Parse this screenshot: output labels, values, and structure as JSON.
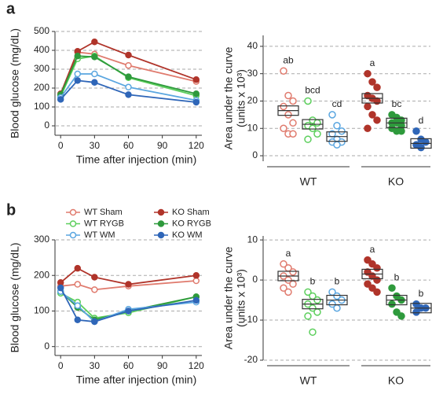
{
  "chart_data": [
    {
      "type": "line",
      "panel": "a",
      "xlabel": "Time after injection (min)",
      "ylabel": "Blood glucose (mg/dL)",
      "x": [
        0,
        15,
        30,
        60,
        120
      ],
      "xlim": [
        -5,
        125
      ],
      "xticks": [
        0,
        30,
        60,
        90,
        120
      ],
      "ylim": [
        -50,
        500
      ],
      "yticks": [
        0,
        100,
        200,
        300,
        400,
        500
      ],
      "grid": true,
      "series": [
        {
          "name": "WT Sham",
          "color": "#e07b6e",
          "marker": "open",
          "values": [
            165,
            390,
            380,
            320,
            235
          ]
        },
        {
          "name": "KO Sham",
          "color": "#b0342a",
          "marker": "filled",
          "values": [
            170,
            395,
            445,
            375,
            245
          ]
        },
        {
          "name": "WT RYGB",
          "color": "#5ccf5c",
          "marker": "open",
          "values": [
            155,
            355,
            370,
            255,
            160
          ]
        },
        {
          "name": "KO RYGB",
          "color": "#2e9a3c",
          "marker": "filled",
          "values": [
            165,
            370,
            365,
            260,
            170
          ]
        },
        {
          "name": "WT WM",
          "color": "#5aa6e0",
          "marker": "open",
          "values": [
            150,
            275,
            275,
            205,
            135
          ]
        },
        {
          "name": "KO WM",
          "color": "#2f66b8",
          "marker": "filled",
          "values": [
            140,
            240,
            230,
            165,
            125
          ]
        }
      ]
    },
    {
      "type": "dot",
      "ylabel": [
        "Area under the curve",
        "(units x 10³)"
      ],
      "categories": [
        null,
        null,
        null,
        null,
        null,
        null
      ],
      "groups": [
        "WT",
        "KO"
      ],
      "colors": [
        "#e07b6e",
        "#5ccf5c",
        "#5aa6e0",
        "#b0342a",
        "#2e9a3c",
        "#2f66b8"
      ],
      "markers": [
        "open",
        "open",
        "open",
        "filled",
        "filled",
        "filled"
      ],
      "ylim": [
        -2,
        44
      ],
      "yticks": [
        0,
        10,
        20,
        30,
        40
      ],
      "grid": true,
      "means": [
        16.5,
        11.5,
        7,
        21,
        12,
        4.5
      ],
      "annotations": [
        "ab",
        "bcd",
        "cd",
        "a",
        "bc",
        "d"
      ],
      "points": [
        [
          31,
          22,
          20,
          18,
          15,
          12,
          10,
          8,
          8
        ],
        [
          20,
          13,
          12,
          11,
          10,
          8,
          6
        ],
        [
          15,
          11,
          9,
          8,
          6,
          5,
          5,
          4
        ],
        [
          30,
          27,
          25,
          22,
          21,
          20,
          18,
          15,
          13,
          10
        ],
        [
          15,
          14,
          13,
          12,
          12,
          11,
          10,
          9,
          9
        ],
        [
          9,
          6,
          5,
          4,
          3
        ]
      ]
    },
    {
      "type": "line",
      "panel": "b",
      "xlabel": "Time after injection (min)",
      "ylabel": "Blood glucose (mg/dL)",
      "legend": true,
      "x": [
        0,
        15,
        30,
        60,
        120
      ],
      "xlim": [
        -5,
        125
      ],
      "xticks": [
        0,
        30,
        60,
        90,
        120
      ],
      "ylim": [
        -25,
        300
      ],
      "yticks": [
        0,
        100,
        200,
        300
      ],
      "grid": true,
      "series": [
        {
          "name": "WT Sham",
          "color": "#e07b6e",
          "marker": "open",
          "values": [
            170,
            175,
            160,
            170,
            185
          ]
        },
        {
          "name": "KO Sham",
          "color": "#b0342a",
          "marker": "filled",
          "values": [
            180,
            220,
            195,
            175,
            200
          ]
        },
        {
          "name": "WT RYGB",
          "color": "#5ccf5c",
          "marker": "open",
          "values": [
            150,
            125,
            80,
            95,
            140
          ]
        },
        {
          "name": "KO RYGB",
          "color": "#2e9a3c",
          "marker": "filled",
          "values": [
            155,
            110,
            75,
            100,
            140
          ]
        },
        {
          "name": "WT WM",
          "color": "#5aa6e0",
          "marker": "open",
          "values": [
            155,
            115,
            70,
            105,
            125
          ]
        },
        {
          "name": "KO WM",
          "color": "#2f66b8",
          "marker": "filled",
          "values": [
            165,
            75,
            70,
            100,
            130
          ]
        }
      ]
    },
    {
      "type": "dot",
      "ylabel": [
        "Area under the curve",
        "(units x 10³)"
      ],
      "categories": [
        null,
        null,
        null,
        null,
        null,
        null
      ],
      "groups": [
        "WT",
        "KO"
      ],
      "colors": [
        "#e07b6e",
        "#5ccf5c",
        "#5aa6e0",
        "#b0342a",
        "#2e9a3c",
        "#2f66b8"
      ],
      "markers": [
        "open",
        "open",
        "open",
        "filled",
        "filled",
        "filled"
      ],
      "ylim": [
        -20,
        11
      ],
      "yticks": [
        -20,
        -10,
        0,
        10
      ],
      "grid": true,
      "means": [
        1,
        -6,
        -5,
        1.5,
        -5,
        -7
      ],
      "annotations": [
        "a",
        "b",
        "b",
        "a",
        "b",
        "b"
      ],
      "points": [
        [
          4,
          3,
          2,
          1,
          0,
          -1,
          -2,
          -3
        ],
        [
          -3,
          -4,
          -5,
          -6,
          -7,
          -8,
          -9,
          -13
        ],
        [
          -3,
          -4,
          -5,
          -6,
          -7
        ],
        [
          5,
          4,
          3,
          2,
          1,
          0,
          -1,
          -2,
          -3
        ],
        [
          -2,
          -4,
          -5,
          -6,
          -8,
          -9
        ],
        [
          -6,
          -7,
          -7,
          -8
        ]
      ]
    }
  ]
}
